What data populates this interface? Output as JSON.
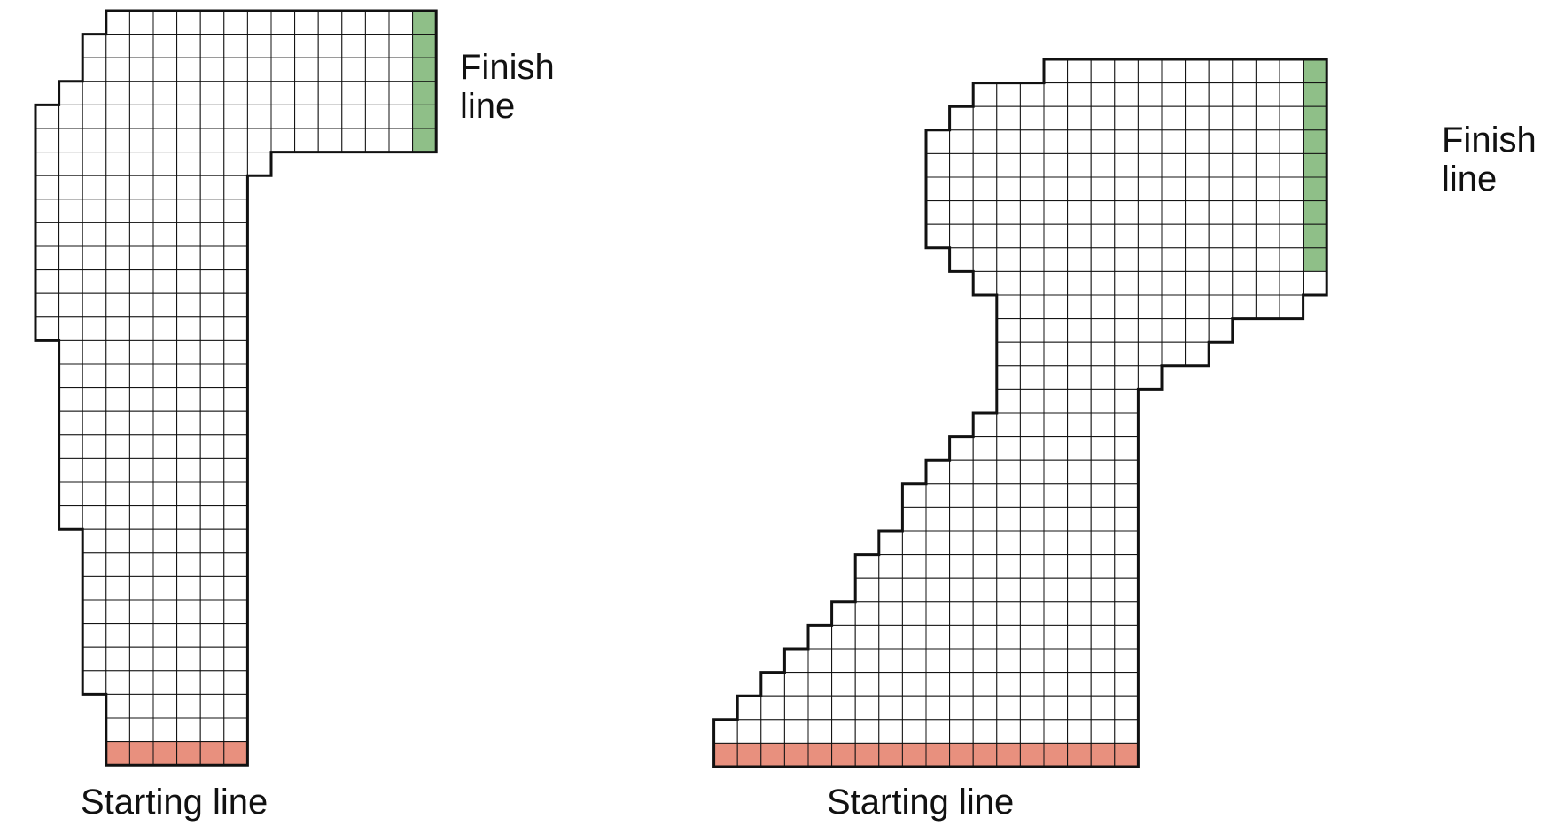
{
  "tracks": [
    {
      "name": "left-track",
      "finish_label_line1": "Finish",
      "finish_label_line2": "line",
      "start_label": "Starting line",
      "start_color": "#e8907e",
      "finish_color": "#8fbf88"
    },
    {
      "name": "right-track",
      "finish_label_line1": "Finish",
      "finish_label_line2": "line",
      "start_label": "Starting line",
      "start_color": "#e8907e",
      "finish_color": "#8fbf88"
    }
  ]
}
